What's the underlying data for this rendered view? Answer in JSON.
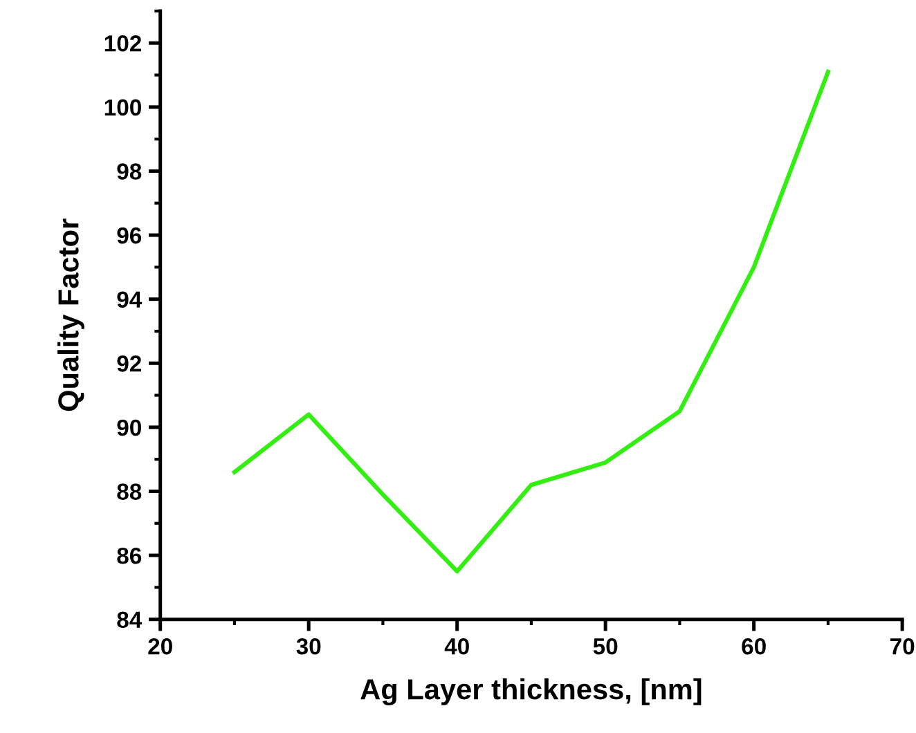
{
  "chart_data": {
    "type": "line",
    "xlabel": "Ag Layer thickness, [nm]",
    "ylabel": "Quality Factor",
    "x": [
      25,
      30,
      35,
      40,
      45,
      50,
      55,
      60,
      65
    ],
    "series": [
      {
        "color": "#33ee11",
        "values": [
          88.6,
          90.4,
          87.9,
          85.5,
          88.2,
          88.9,
          90.5,
          95.0,
          101.1
        ]
      }
    ],
    "xlim": [
      20,
      70
    ],
    "xticks": [
      20,
      30,
      40,
      50,
      60,
      70
    ],
    "ylim": [
      84,
      103
    ],
    "yticks": [
      84,
      86,
      88,
      90,
      92,
      94,
      96,
      98,
      100,
      102
    ],
    "grid": false,
    "legend": false,
    "marker": "none",
    "line_style": "solid"
  }
}
